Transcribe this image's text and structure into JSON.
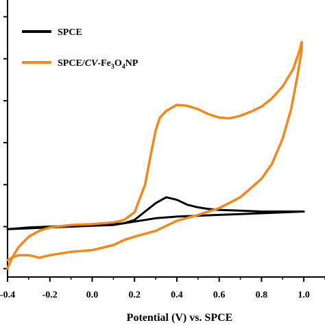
{
  "chart_data": {
    "type": "line",
    "xlabel": "Potential (V) vs. SPCE",
    "ylabel": "",
    "xlim": [
      -0.4,
      1.1
    ],
    "ylim": [
      -0.6,
      2.7
    ],
    "x_ticks": [
      -0.4,
      -0.2,
      0.0,
      0.2,
      0.4,
      0.6,
      0.8,
      1.0
    ],
    "x_tick_labels": [
      "-0.4",
      "-0.2",
      "0.0",
      "0.2",
      "0.4",
      "0.6",
      "0.8",
      "1.0"
    ],
    "y_ticks": [
      -0.5,
      0.0,
      0.5,
      1.0,
      1.5,
      2.0,
      2.5
    ],
    "y_tick_labels_visible": false,
    "legend": {
      "placement": "top-left",
      "entries": [
        {
          "text": "SPCE",
          "color": "#000000"
        },
        {
          "text_main": "SPCE/",
          "text_italic": "CV",
          "text_dash": "-Fe",
          "sub1": "3",
          "text_o": "O",
          "sub2": "4",
          "text_np": "NP",
          "color": "#f0891a"
        }
      ]
    },
    "series": [
      {
        "name": "SPCE",
        "color": "#000000",
        "points": [
          [
            -0.4,
            -0.03
          ],
          [
            -0.3,
            -0.01
          ],
          [
            -0.2,
            0.0
          ],
          [
            -0.1,
            0.01
          ],
          [
            0.0,
            0.02
          ],
          [
            0.1,
            0.03
          ],
          [
            0.15,
            0.04
          ],
          [
            0.2,
            0.08
          ],
          [
            0.25,
            0.18
          ],
          [
            0.3,
            0.28
          ],
          [
            0.35,
            0.35
          ],
          [
            0.4,
            0.32
          ],
          [
            0.45,
            0.26
          ],
          [
            0.5,
            0.23
          ],
          [
            0.55,
            0.21
          ],
          [
            0.6,
            0.2
          ],
          [
            0.7,
            0.19
          ],
          [
            0.8,
            0.18
          ],
          [
            0.9,
            0.18
          ],
          [
            1.0,
            0.18
          ],
          [
            0.9,
            0.17
          ],
          [
            0.8,
            0.16
          ],
          [
            0.7,
            0.15
          ],
          [
            0.6,
            0.14
          ],
          [
            0.5,
            0.13
          ],
          [
            0.4,
            0.12
          ],
          [
            0.3,
            0.1
          ],
          [
            0.2,
            0.06
          ],
          [
            0.1,
            0.02
          ],
          [
            0.0,
            0.01
          ],
          [
            -0.1,
            0.0
          ],
          [
            -0.2,
            -0.01
          ],
          [
            -0.3,
            -0.02
          ],
          [
            -0.4,
            -0.03
          ]
        ]
      },
      {
        "name": "SPCE/CV-Fe3O4NP",
        "color": "#f0891a",
        "points": [
          [
            -0.4,
            -0.5
          ],
          [
            -0.38,
            -0.38
          ],
          [
            -0.35,
            -0.25
          ],
          [
            -0.3,
            -0.12
          ],
          [
            -0.25,
            -0.05
          ],
          [
            -0.2,
            -0.01
          ],
          [
            -0.1,
            0.02
          ],
          [
            0.0,
            0.03
          ],
          [
            0.1,
            0.05
          ],
          [
            0.15,
            0.08
          ],
          [
            0.2,
            0.17
          ],
          [
            0.25,
            0.5
          ],
          [
            0.28,
            0.9
          ],
          [
            0.3,
            1.15
          ],
          [
            0.32,
            1.3
          ],
          [
            0.35,
            1.38
          ],
          [
            0.4,
            1.45
          ],
          [
            0.45,
            1.44
          ],
          [
            0.5,
            1.4
          ],
          [
            0.55,
            1.34
          ],
          [
            0.6,
            1.3
          ],
          [
            0.65,
            1.29
          ],
          [
            0.7,
            1.32
          ],
          [
            0.75,
            1.37
          ],
          [
            0.8,
            1.43
          ],
          [
            0.85,
            1.53
          ],
          [
            0.9,
            1.67
          ],
          [
            0.95,
            1.88
          ],
          [
            0.98,
            2.1
          ],
          [
            0.99,
            2.2
          ],
          [
            0.99,
            2.1
          ],
          [
            0.97,
            1.8
          ],
          [
            0.94,
            1.4
          ],
          [
            0.9,
            1.05
          ],
          [
            0.85,
            0.75
          ],
          [
            0.8,
            0.57
          ],
          [
            0.7,
            0.35
          ],
          [
            0.6,
            0.22
          ],
          [
            0.5,
            0.14
          ],
          [
            0.4,
            0.07
          ],
          [
            0.3,
            -0.05
          ],
          [
            0.2,
            -0.12
          ],
          [
            0.15,
            -0.16
          ],
          [
            0.1,
            -0.22
          ],
          [
            0.0,
            -0.28
          ],
          [
            -0.1,
            -0.3
          ],
          [
            -0.2,
            -0.34
          ],
          [
            -0.25,
            -0.37
          ],
          [
            -0.3,
            -0.34
          ],
          [
            -0.35,
            -0.34
          ],
          [
            -0.38,
            -0.37
          ],
          [
            -0.4,
            -0.4
          ]
        ]
      }
    ]
  }
}
